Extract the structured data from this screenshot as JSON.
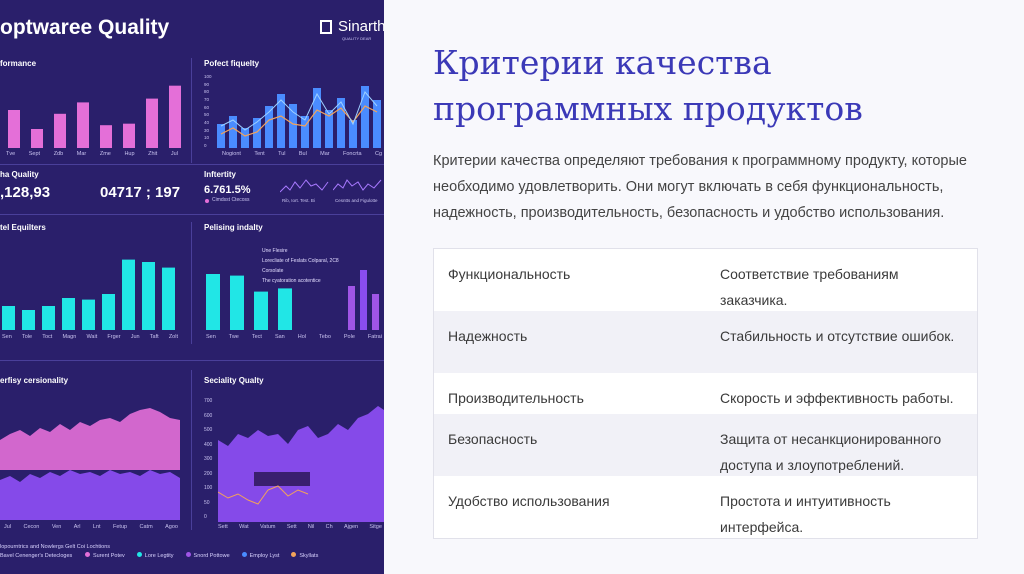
{
  "dashboard": {
    "header_title": "optwaree Quality",
    "logo_text": "Sinarth",
    "logo_sub": "QUALITY DEAR",
    "panels": {
      "performance": {
        "title": "formance",
        "ticks": [
          "Tve",
          "Sept",
          "Zdb",
          "Mar",
          "Zme",
          "Hup",
          "Zhit",
          "Jul"
        ]
      },
      "defect": {
        "title": "Pofect fiquelty",
        "ticks": [
          "Nogiont",
          "Tent",
          "Tul",
          "Bul",
          "Mar",
          "Foncrta",
          "Cg"
        ],
        "yticks": [
          "100",
          "90",
          "80",
          "70",
          "60",
          "50",
          "40",
          "30",
          "10",
          "0"
        ]
      },
      "quality_stat": {
        "label": "ha Quality",
        "value1": ",128,93",
        "value2": "04717 ; 197"
      },
      "infinity": {
        "title": "Inftertity",
        "value": "6.761.5%",
        "legend": "Cimdsst Ctecoss",
        "cap1": "Rib, Iort. Test. Bi",
        "cap2": "Cesntts and Figulotte"
      },
      "equilters": {
        "title": "tel Equilters",
        "ticks": [
          "Sen",
          "Tole",
          "Toct",
          "Magn",
          "Wait",
          "Frger",
          "Jun",
          "Taft",
          "Zolt"
        ]
      },
      "pelising": {
        "title": "Pelising indalty",
        "ticks": [
          "Sen",
          "Twe",
          "Tect",
          "San",
          "Hol",
          "Tebo",
          "Pole",
          "Fatrai"
        ],
        "legend": [
          "Une Flesire",
          "Lorecliate of Feslats Colparal, 2C8",
          "Corsolate",
          "The cyatoration acotentice"
        ]
      },
      "cersionality": {
        "title": "erfisy cersionality",
        "ticks": [
          "Jul",
          "Cecon",
          "Ven",
          "Arl",
          "Lnt",
          "Fetup",
          "Catm",
          "Agoo"
        ]
      },
      "seciality": {
        "title": "Seciality Qualty",
        "ticks": [
          "Sett",
          "Wat",
          "Vatum",
          "Sett",
          "Nil",
          "Ch",
          "Ajgen",
          "Sitge"
        ],
        "yticks": [
          "700",
          "600",
          "500",
          "400",
          "300",
          "200",
          "100",
          "50",
          "0"
        ]
      }
    },
    "footer": {
      "left1": "lopourntrics and Nowlergs Gelt Coi Lochtions",
      "left2": "Bavel Cenenger's Detecloges",
      "legend": [
        "Surent Potev",
        "Lore Legtity",
        "Snord Pottowe",
        "Employ Lyst",
        "Skyllats"
      ]
    }
  },
  "slide": {
    "title": "Критерии качества программных продуктов",
    "description": "Критерии качества определяют требования к программному продукту, которые необходимо удовлетворить. Они могут включать в себя функциональность, надежность, производительность, безопасность и удобство использования.",
    "rows": [
      {
        "criterion": "Функциональность",
        "meaning": "Соответствие требованиям заказчика."
      },
      {
        "criterion": "Надежность",
        "meaning": "Стабильность и отсутствие ошибок."
      },
      {
        "criterion": "Производительность",
        "meaning": "Скорость и эффективность работы."
      },
      {
        "criterion": "Безопасность",
        "meaning": "Защита от несанкционированного доступа и злоупотреблений."
      },
      {
        "criterion": "Удобство использования",
        "meaning": "Простота и интуитивность интерфейса."
      }
    ]
  },
  "colors": {
    "accent": "#3b39b7",
    "dash_bg": "#2a1f6b",
    "pink": "#e46fd8",
    "cyan": "#21e6e6",
    "blue": "#4a8cff",
    "purple": "#a055e6"
  },
  "chart_bars": {
    "performance": [
      50,
      25,
      45,
      60,
      30,
      32,
      65,
      82
    ],
    "equilters": [
      30,
      25,
      30,
      40,
      38,
      45,
      88,
      85,
      78
    ],
    "pelising": [
      70,
      68,
      48,
      52
    ]
  }
}
